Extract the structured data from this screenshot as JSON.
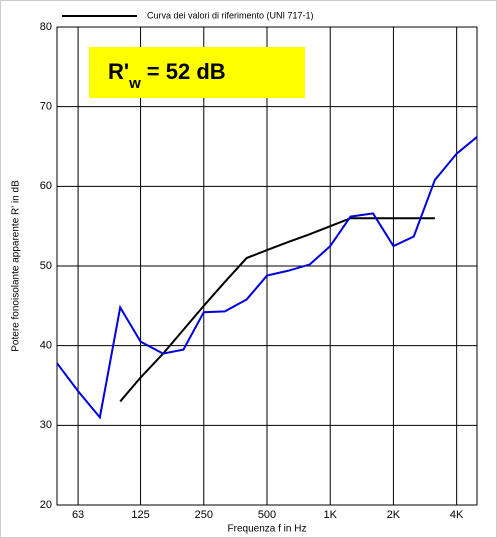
{
  "chart_data": {
    "type": "line",
    "y_label": "Potere fonoisolante apparente R' in dB",
    "x_label": "Frequenza f in Hz",
    "annotation": {
      "main": "R'",
      "sub": "w",
      "rest": "=  52 dB"
    },
    "x": [
      50,
      63,
      80,
      100,
      125,
      160,
      200,
      250,
      315,
      400,
      500,
      630,
      800,
      1000,
      1250,
      1600,
      2000,
      2500,
      3150,
      4000,
      5000
    ],
    "series": [
      {
        "name": "Curva dei valori di riferimento (UNI 717-1)",
        "color": "#000000",
        "values": [
          null,
          null,
          null,
          33,
          36,
          39,
          42,
          45,
          48,
          51,
          52,
          53,
          54,
          55,
          56,
          56,
          56,
          56,
          56,
          null,
          null
        ]
      },
      {
        "color": "#0000dd",
        "values": [
          37.8,
          34.3,
          31,
          44.8,
          40.5,
          39,
          39.5,
          44.2,
          44.3,
          45.8,
          48.8,
          49.4,
          50.2,
          52.5,
          56.2,
          56.6,
          52.5,
          53.7,
          60.8,
          64.1,
          66.2
        ]
      }
    ],
    "xlim": [
      50,
      5000
    ],
    "xscale": "log",
    "xticks": [
      63,
      125,
      250,
      500,
      {
        "value": 1000,
        "label": "1K"
      },
      {
        "value": 2000,
        "label": "2K"
      },
      {
        "value": 4000,
        "label": "4K"
      }
    ],
    "ylim": [
      20,
      80
    ],
    "yticks": [
      20,
      30,
      40,
      50,
      60,
      70,
      80
    ],
    "grid": true
  }
}
